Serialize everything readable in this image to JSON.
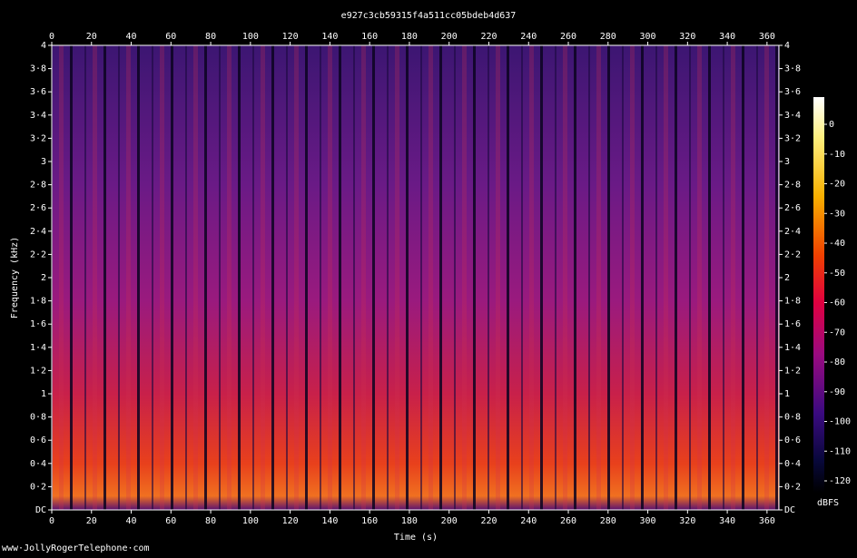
{
  "chart_data": {
    "type": "spectrogram",
    "title": "e927c3cb59315f4a511cc05bdeb4d637",
    "x_label": "Time (s)",
    "y_label": "Frequency (kHz)",
    "footer": "www·JollyRogerTelephone·com",
    "xlim": [
      0,
      366
    ],
    "xticks": [
      0,
      20,
      40,
      60,
      80,
      100,
      120,
      140,
      160,
      180,
      200,
      220,
      240,
      260,
      280,
      300,
      320,
      340,
      360
    ],
    "ylim": [
      0,
      4
    ],
    "yticks": [
      {
        "value": 0,
        "label": "DC"
      },
      {
        "value": 0.2,
        "label": "0·2"
      },
      {
        "value": 0.4,
        "label": "0·4"
      },
      {
        "value": 0.6,
        "label": "0·6"
      },
      {
        "value": 0.8,
        "label": "0·8"
      },
      1,
      {
        "value": 1.2,
        "label": "1·2"
      },
      {
        "value": 1.4,
        "label": "1·4"
      },
      {
        "value": 1.6,
        "label": "1·6"
      },
      {
        "value": 1.8,
        "label": "1·8"
      },
      2,
      {
        "value": 2.2,
        "label": "2·2"
      },
      {
        "value": 2.4,
        "label": "2·4"
      },
      {
        "value": 2.6,
        "label": "2·6"
      },
      {
        "value": 2.8,
        "label": "2·8"
      },
      3,
      {
        "value": 3.2,
        "label": "3·2"
      },
      {
        "value": 3.4,
        "label": "3·4"
      },
      {
        "value": 3.6,
        "label": "3·6"
      },
      {
        "value": 3.8,
        "label": "3·8"
      },
      4
    ],
    "colorbar": {
      "label": "dBFS",
      "lim": [
        -120,
        0
      ],
      "ticks": [
        0,
        -10,
        -20,
        -30,
        -40,
        -50,
        -60,
        -70,
        -80,
        -90,
        -100,
        -110,
        -120
      ]
    }
  }
}
